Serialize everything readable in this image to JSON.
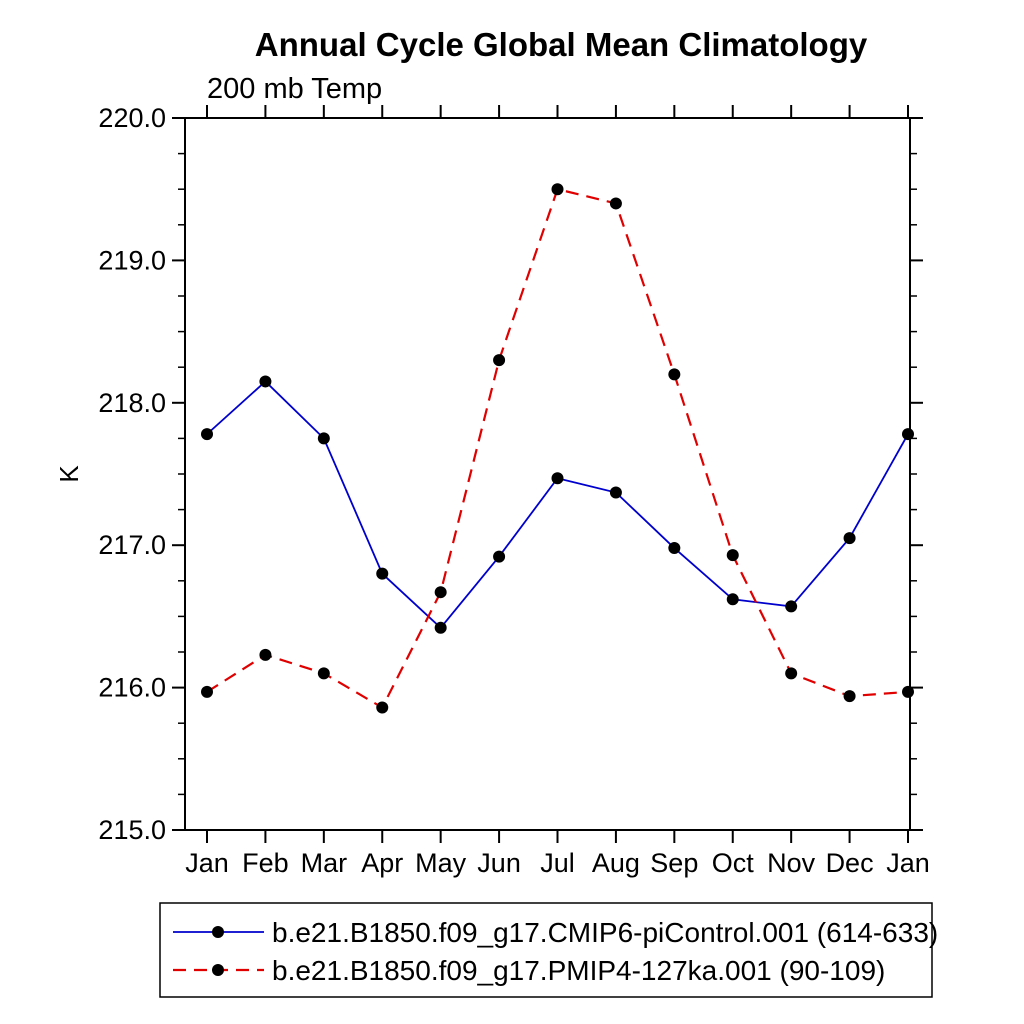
{
  "chart_data": {
    "type": "line",
    "title": "Annual Cycle Global Mean Climatology",
    "subtitle": "200 mb Temp",
    "ylabel": "K",
    "xlabel": "",
    "ylim": [
      215.0,
      220.0
    ],
    "ytick_major": 1.0,
    "ytick_minor": 0.25,
    "ytick_decimals": 1,
    "grid": false,
    "background": "#ffffff",
    "axis_color": "#000000",
    "legend_position": "bottom",
    "categories": [
      "Jan",
      "Feb",
      "Mar",
      "Apr",
      "May",
      "Jun",
      "Jul",
      "Aug",
      "Sep",
      "Oct",
      "Nov",
      "Dec",
      "Jan"
    ],
    "series": [
      {
        "name": "b.e21.B1850.f09_g17.CMIP6-piControl.001 (614-633)",
        "color": "#0000cd",
        "line_style": "solid",
        "line_width": 1.8,
        "marker": "circle",
        "marker_color": "#000000",
        "values": [
          217.78,
          218.15,
          217.75,
          216.8,
          216.42,
          216.92,
          217.47,
          217.37,
          216.98,
          216.62,
          216.57,
          217.05,
          217.78
        ]
      },
      {
        "name": "b.e21.B1850.f09_g17.PMIP4-127ka.001 (90-109)",
        "color": "#e00000",
        "line_style": "dashed",
        "line_width": 2.2,
        "marker": "circle",
        "marker_color": "#000000",
        "values": [
          215.97,
          216.23,
          216.1,
          215.86,
          216.67,
          218.3,
          219.5,
          219.4,
          218.2,
          216.93,
          216.1,
          215.94,
          215.97
        ]
      }
    ]
  }
}
